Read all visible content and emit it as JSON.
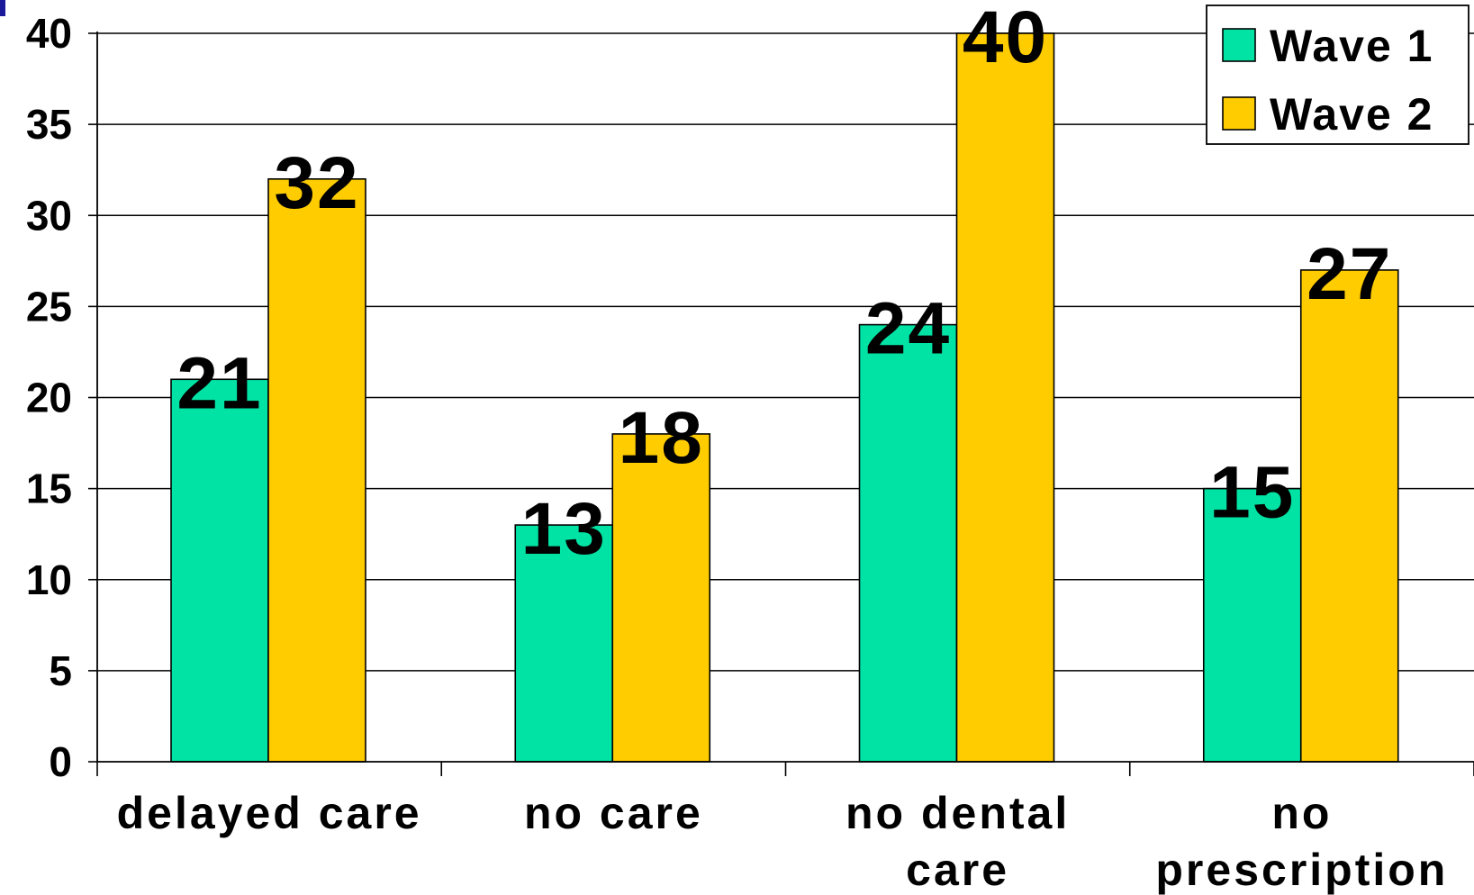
{
  "chart_data": {
    "type": "bar",
    "categories": [
      [
        "delayed care"
      ],
      [
        "no care"
      ],
      [
        "no dental",
        "care"
      ],
      [
        "no",
        "prescription"
      ]
    ],
    "series": [
      {
        "name": "Wave 1",
        "values": [
          21,
          13,
          24,
          15
        ],
        "color": "#00E3A5"
      },
      {
        "name": "Wave 2",
        "values": [
          32,
          18,
          40,
          27
        ],
        "color": "#FFCC00"
      }
    ],
    "y_ticks": [
      "0",
      "5",
      "10",
      "15",
      "20",
      "25",
      "30",
      "35",
      "40"
    ],
    "ylim": [
      0,
      40
    ],
    "grid": true,
    "legend_position": "top-right",
    "title": "",
    "xlabel": "",
    "ylabel": ""
  }
}
